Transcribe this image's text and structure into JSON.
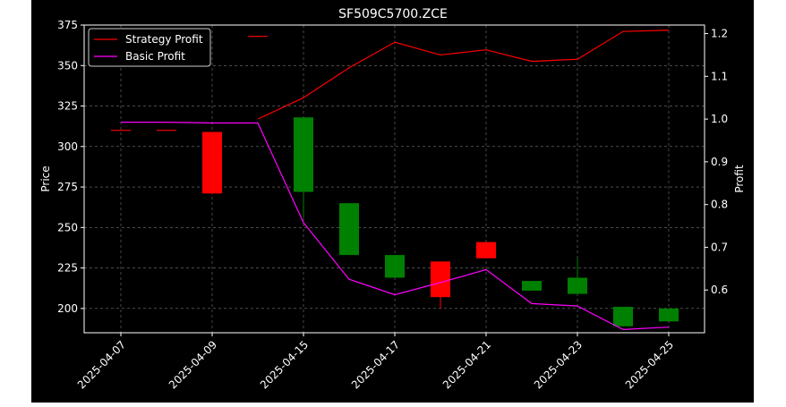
{
  "chart_data": {
    "type": "candlestick",
    "title": "SF509C5700.ZCE",
    "background": "#000000",
    "x_tick_labels": [
      "2025-04-07",
      "2025-04-09",
      "2025-04-15",
      "2025-04-17",
      "2025-04-21",
      "2025-04-23",
      "2025-04-25"
    ],
    "x_tick_indices": [
      0,
      2,
      4,
      6,
      8,
      10,
      12
    ],
    "left_axis": {
      "label": "Price",
      "lim": [
        185,
        375
      ],
      "ticks": [
        200,
        225,
        250,
        275,
        300,
        325,
        350,
        375
      ]
    },
    "right_axis": {
      "label": "Profit",
      "lim": [
        0.5,
        1.22
      ],
      "ticks": [
        "0.6",
        "0.7",
        "0.8",
        "0.9",
        "1.0",
        "1.1",
        "1.2"
      ]
    },
    "grid": true,
    "legend_position": "upper-left",
    "candles": [
      {
        "i": 0,
        "open": 310,
        "close": 310,
        "high": 310,
        "low": 310,
        "color": "#ff0000"
      },
      {
        "i": 1,
        "open": 310,
        "close": 310,
        "high": 310,
        "low": 310,
        "color": "#ff0000"
      },
      {
        "i": 2,
        "open": 309,
        "close": 271,
        "high": 309,
        "low": 271,
        "color": "#ff0000"
      },
      {
        "i": 3,
        "open": 368,
        "close": 368,
        "high": 368,
        "low": 368,
        "color": "#ff0000"
      },
      {
        "i": 4,
        "open": 272,
        "close": 318,
        "high": 318,
        "low": 256,
        "color": "#008000"
      },
      {
        "i": 5,
        "open": 233,
        "close": 265,
        "high": 265,
        "low": 233,
        "color": "#008000"
      },
      {
        "i": 6,
        "open": 219,
        "close": 233,
        "high": 233,
        "low": 219,
        "color": "#008000"
      },
      {
        "i": 7,
        "open": 229,
        "close": 207,
        "high": 229,
        "low": 200,
        "color": "#ff0000"
      },
      {
        "i": 8,
        "open": 241,
        "close": 231,
        "high": 241,
        "low": 231,
        "color": "#ff0000"
      },
      {
        "i": 9,
        "open": 211,
        "close": 217,
        "high": 217,
        "low": 211,
        "color": "#008000"
      },
      {
        "i": 10,
        "open": 209,
        "close": 219,
        "high": 231,
        "low": 209,
        "color": "#008000"
      },
      {
        "i": 11,
        "open": 189,
        "close": 201,
        "high": 201,
        "low": 189,
        "color": "#008000"
      },
      {
        "i": 12,
        "open": 192,
        "close": 200,
        "high": 200,
        "low": 192,
        "color": "#008000"
      }
    ],
    "series": [
      {
        "name": "Strategy Profit",
        "axis": "right",
        "color": "#ff0000",
        "points": [
          [
            3,
            1.0
          ],
          [
            4,
            1.05
          ],
          [
            5,
            1.12
          ],
          [
            6,
            1.18
          ],
          [
            7,
            1.15
          ],
          [
            8,
            1.162
          ],
          [
            9,
            1.135
          ],
          [
            10,
            1.14
          ],
          [
            11,
            1.205
          ],
          [
            12,
            1.208
          ]
        ]
      },
      {
        "name": "Basic Profit",
        "axis": "left",
        "color": "#ff00ff",
        "points": [
          [
            0,
            315
          ],
          [
            1,
            315
          ],
          [
            2,
            314.5
          ],
          [
            3,
            314.5
          ],
          [
            4,
            253
          ],
          [
            5,
            218
          ],
          [
            6,
            208.5
          ],
          [
            7,
            216
          ],
          [
            8,
            224
          ],
          [
            9,
            203
          ],
          [
            10,
            201.5
          ],
          [
            11,
            187
          ],
          [
            12,
            188.5
          ]
        ]
      }
    ]
  }
}
